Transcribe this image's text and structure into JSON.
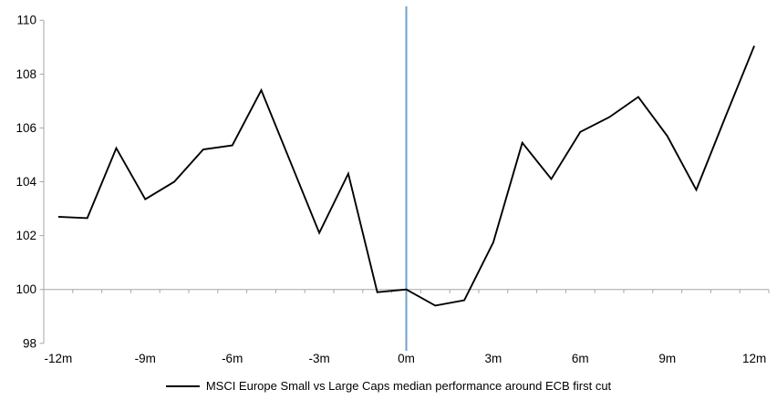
{
  "chart_data": {
    "type": "line",
    "title": "",
    "categories": [
      "-12m",
      "-11m",
      "-10m",
      "-9m",
      "-8m",
      "-7m",
      "-6m",
      "-5m",
      "-4m",
      "-3m",
      "-2m",
      "-1m",
      "0m",
      "1m",
      "2m",
      "3m",
      "4m",
      "5m",
      "6m",
      "7m",
      "8m",
      "9m",
      "10m",
      "11m",
      "12m"
    ],
    "series": [
      {
        "name": "MSCI Europe Small vs Large Caps median performance around ECB first cut",
        "values": [
          102.7,
          102.65,
          105.25,
          103.35,
          104.0,
          105.2,
          105.35,
          107.4,
          104.75,
          102.1,
          104.3,
          99.9,
          100.0,
          99.4,
          99.6,
          101.75,
          105.45,
          104.1,
          105.85,
          106.4,
          107.15,
          105.7,
          103.7,
          106.4,
          109.05
        ]
      }
    ],
    "x_tick_labels": [
      "-12m",
      "-9m",
      "-6m",
      "-3m",
      "0m",
      "3m",
      "6m",
      "9m",
      "12m"
    ],
    "x_label_every": 3,
    "y_ticks": [
      98,
      100,
      102,
      104,
      106,
      108,
      110
    ],
    "ylim": [
      98,
      110
    ],
    "baseline_value": 100,
    "event_line_category": "0m",
    "grid": "off",
    "legend_position": "bottom",
    "colors": {
      "series_line": "#000000",
      "axis": "#a6a6a6",
      "event_line": "#6ea0cd",
      "text": "#000000",
      "background": "#ffffff"
    }
  },
  "legend": {
    "label": "MSCI Europe Small vs Large Caps median performance around ECB first cut"
  }
}
